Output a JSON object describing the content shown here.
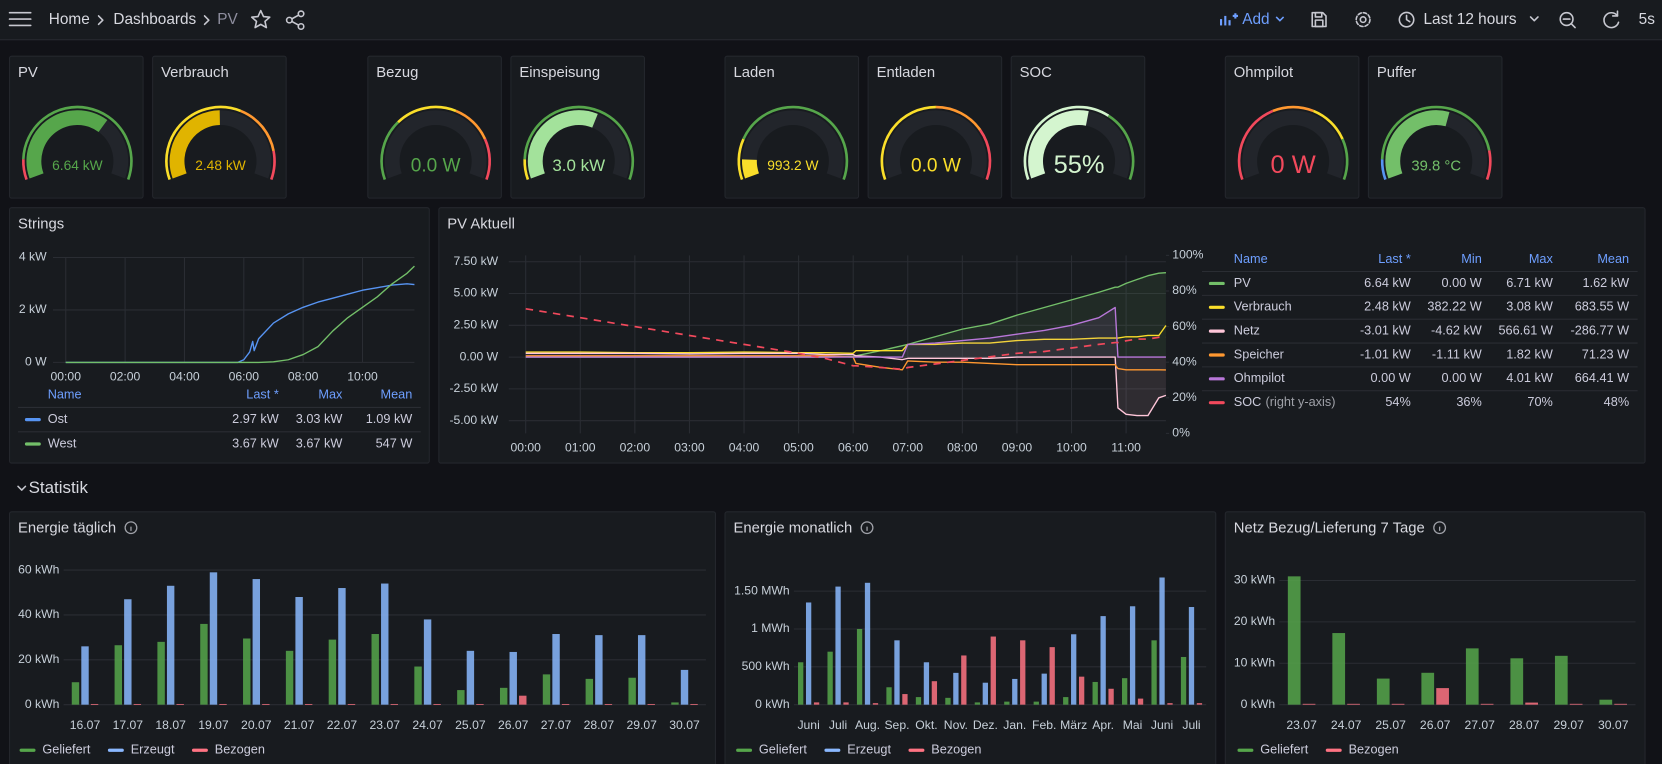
{
  "header": {
    "breadcrumb": [
      "Home",
      "Dashboards",
      "PV"
    ],
    "add": "Add",
    "time_range": "Last 12 hours",
    "refresh": "5s"
  },
  "section": "Statistik",
  "chart_data": [
    {
      "type": "gauge",
      "title": "PV",
      "value": 6.64,
      "value_label": "6.64 kW",
      "ylim": [
        0,
        10
      ],
      "color": "#56a64b",
      "thresholds": [
        {
          "value": 0,
          "color": "#f2495c"
        },
        {
          "value": 1,
          "color": "#56a64b"
        }
      ]
    },
    {
      "type": "gauge",
      "title": "Verbrauch",
      "value": 2.48,
      "value_label": "2.48 kW",
      "ylim": [
        0,
        5
      ],
      "color": "#e0b400",
      "thresholds": [
        {
          "value": 0,
          "color": "#fade2a"
        },
        {
          "value": 3,
          "color": "#ff9830"
        },
        {
          "value": 4.3,
          "color": "#f2495c"
        }
      ]
    },
    {
      "type": "gauge",
      "title": "Bezug",
      "value": 0,
      "value_label": "0.0 W",
      "ylim": [
        0,
        10000
      ],
      "color": "#56a64b",
      "thresholds": [
        {
          "value": 0,
          "color": "#56a64b"
        },
        {
          "value": 3000,
          "color": "#fade2a"
        },
        {
          "value": 6000,
          "color": "#ff9830"
        },
        {
          "value": 8000,
          "color": "#f2495c"
        }
      ]
    },
    {
      "type": "gauge",
      "title": "Einspeisung",
      "value": 3.0,
      "value_label": "3.0 kW",
      "ylim": [
        0,
        5
      ],
      "color": "#a3e29b",
      "thresholds": [
        {
          "value": 0,
          "color": "#fade2a"
        },
        {
          "value": 0.5,
          "color": "#56a64b"
        }
      ]
    },
    {
      "type": "gauge",
      "title": "Laden",
      "value": 993.2,
      "value_label": "993.2 W",
      "ylim": [
        0,
        10000
      ],
      "color": "#fade2a",
      "thresholds": [
        {
          "value": 0,
          "color": "#fade2a"
        },
        {
          "value": 2000,
          "color": "#56a64b"
        }
      ]
    },
    {
      "type": "gauge",
      "title": "Entladen",
      "value": 0,
      "value_label": "0.0 W",
      "ylim": [
        0,
        10000
      ],
      "color": "#fade2a",
      "thresholds": [
        {
          "value": 0,
          "color": "#fade2a"
        },
        {
          "value": 5000,
          "color": "#ff9830"
        },
        {
          "value": 7500,
          "color": "#f2495c"
        }
      ]
    },
    {
      "type": "gauge",
      "title": "SOC",
      "value": 55,
      "value_label": "55%",
      "ylim": [
        0,
        100
      ],
      "color": "#d4f5cf",
      "thresholds": [
        {
          "value": 0,
          "color": "#d4f5cf"
        },
        {
          "value": 65,
          "color": "#56a64b"
        }
      ]
    },
    {
      "type": "gauge",
      "title": "Ohmpilot",
      "value": 0,
      "value_label": "0 W",
      "ylim": [
        0,
        5000
      ],
      "color": "#f2495c",
      "thresholds": [
        {
          "value": 0,
          "color": "#f2495c"
        },
        {
          "value": 2000,
          "color": "#ff9830"
        },
        {
          "value": 3000,
          "color": "#fade2a"
        },
        {
          "value": 4000,
          "color": "#56a64b"
        }
      ]
    },
    {
      "type": "gauge",
      "title": "Puffer",
      "value": 39.8,
      "value_label": "39.8 °C",
      "ylim": [
        0,
        70
      ],
      "color": "#73bf69",
      "thresholds": [
        {
          "value": 0,
          "color": "#5794f2"
        },
        {
          "value": 7,
          "color": "#56a64b"
        },
        {
          "value": 60,
          "color": "#f2495c"
        }
      ]
    },
    {
      "type": "line",
      "title": "Strings",
      "x": [
        0,
        1,
        2,
        3,
        4,
        5,
        5.8,
        6.0,
        6.2,
        6.3,
        6.35,
        6.5,
        7,
        7.5,
        8,
        8.5,
        9,
        9.5,
        10,
        10.5,
        11,
        11.5,
        11.75
      ],
      "xlim": [
        -0.43,
        11.75
      ],
      "xticks": [
        {
          "value": 0,
          "label": "00:00"
        },
        {
          "value": 2,
          "label": "02:00"
        },
        {
          "value": 4,
          "label": "04:00"
        },
        {
          "value": 6,
          "label": "06:00"
        },
        {
          "value": 8,
          "label": "08:00"
        },
        {
          "value": 10,
          "label": "10:00"
        }
      ],
      "ylim": [
        0,
        4
      ],
      "yticks": [
        {
          "value": 0,
          "label": "0 W"
        },
        {
          "value": 2,
          "label": "2 kW"
        },
        {
          "value": 4,
          "label": "4 kW"
        }
      ],
      "grid": true,
      "legend_columns": [
        "Name",
        "Last *",
        "Max",
        "Mean"
      ],
      "series": [
        {
          "name": "Ost",
          "color": "#5794f2",
          "values": [
            0,
            0,
            0,
            0,
            0,
            0,
            0,
            0.1,
            0.4,
            0.8,
            0.45,
            0.9,
            1.5,
            1.85,
            2.1,
            2.3,
            2.45,
            2.6,
            2.75,
            2.85,
            2.95,
            3.0,
            2.97
          ],
          "stats": [
            "2.97 kW",
            "3.03 kW",
            "1.09 kW"
          ]
        },
        {
          "name": "West",
          "color": "#73bf69",
          "values": [
            0,
            0,
            0,
            0,
            0,
            0,
            0,
            0,
            0,
            0,
            0,
            0,
            0.02,
            0.1,
            0.3,
            0.6,
            1.2,
            1.7,
            2.1,
            2.5,
            3.0,
            3.4,
            3.67
          ],
          "stats": [
            "3.67 kW",
            "3.67 kW",
            "547 W"
          ]
        }
      ]
    },
    {
      "type": "line",
      "title": "PV Aktuell",
      "x": [
        0,
        1,
        2,
        3,
        4,
        5,
        5.5,
        6.0,
        6.05,
        6.5,
        6.9,
        7.0,
        7.5,
        8,
        8.5,
        9,
        9.5,
        10,
        10.5,
        10.8,
        10.85,
        11,
        11.2,
        11.4,
        11.6,
        11.73
      ],
      "xlim": [
        -0.31,
        11.73
      ],
      "xticks": [
        {
          "value": 0,
          "label": "00:00"
        },
        {
          "value": 1,
          "label": "01:00"
        },
        {
          "value": 2,
          "label": "02:00"
        },
        {
          "value": 3,
          "label": "03:00"
        },
        {
          "value": 4,
          "label": "04:00"
        },
        {
          "value": 5,
          "label": "05:00"
        },
        {
          "value": 6,
          "label": "06:00"
        },
        {
          "value": 7,
          "label": "07:00"
        },
        {
          "value": 8,
          "label": "08:00"
        },
        {
          "value": 9,
          "label": "09:00"
        },
        {
          "value": 10,
          "label": "10:00"
        },
        {
          "value": 11,
          "label": "11:00"
        }
      ],
      "ylim": [
        -6,
        8
      ],
      "yticks": [
        {
          "value": -5,
          "label": "-5.00 kW"
        },
        {
          "value": -2.5,
          "label": "-2.50 kW"
        },
        {
          "value": 0,
          "label": "0.00 W"
        },
        {
          "value": 2.5,
          "label": "2.50 kW"
        },
        {
          "value": 5,
          "label": "5.00 kW"
        },
        {
          "value": 7.5,
          "label": "7.50 kW"
        }
      ],
      "y2lim": [
        0,
        100
      ],
      "y2ticks": [
        {
          "value": 0,
          "label": "0%"
        },
        {
          "value": 20,
          "label": "20%"
        },
        {
          "value": 40,
          "label": "40%"
        },
        {
          "value": 60,
          "label": "60%"
        },
        {
          "value": 80,
          "label": "80%"
        },
        {
          "value": 100,
          "label": "100%"
        }
      ],
      "grid": true,
      "legend_columns": [
        "Name",
        "Last *",
        "Min",
        "Max",
        "Mean"
      ],
      "series": [
        {
          "name": "PV",
          "color": "#73bf69",
          "fill": true,
          "values": [
            0,
            0,
            0,
            0,
            0,
            0,
            0,
            0.05,
            0.1,
            0.5,
            0.9,
            1.0,
            1.6,
            2.2,
            2.6,
            3.3,
            3.9,
            4.5,
            5.1,
            5.5,
            5.5,
            5.8,
            6.1,
            6.4,
            6.6,
            6.64
          ],
          "stats": [
            "6.64 kW",
            "0.00 W",
            "6.71 kW",
            "1.62 kW"
          ]
        },
        {
          "name": "Verbrauch",
          "color": "#fade2a",
          "values": [
            0.4,
            0.4,
            0.35,
            0.35,
            0.4,
            0.35,
            0.35,
            0.3,
            0.5,
            0.5,
            0.5,
            1.0,
            1.0,
            1.1,
            1.1,
            1.3,
            1.4,
            1.4,
            1.5,
            1.5,
            1.5,
            1.6,
            1.6,
            1.7,
            1.7,
            2.48
          ],
          "stats": [
            "2.48 kW",
            "382.22 W",
            "3.08 kW",
            "683.55 W"
          ]
        },
        {
          "name": "Netz",
          "color": "#ffc6d9",
          "fill": true,
          "values": [
            0.3,
            0.3,
            0.3,
            0.25,
            0.3,
            0.3,
            0.2,
            0.2,
            0.1,
            0,
            -0.2,
            -0.1,
            -0.1,
            -0.1,
            -0.1,
            0,
            0,
            0,
            0,
            0,
            -4.0,
            -4.5,
            -4.6,
            -4.6,
            -3.2,
            -3.01
          ],
          "stats": [
            "-3.01 kW",
            "-4.62 kW",
            "566.61 W",
            "-286.77 W"
          ]
        },
        {
          "name": "Speicher",
          "color": "#ff9830",
          "values": [
            0.1,
            0.1,
            0.1,
            0.1,
            0.1,
            0.1,
            0.1,
            0,
            -0.5,
            -0.8,
            -1.0,
            -0.3,
            -0.4,
            -0.4,
            -0.5,
            -0.6,
            -0.6,
            -0.6,
            -0.6,
            -0.6,
            -0.9,
            -1.0,
            -1.0,
            -1.0,
            -1.0,
            -1.01
          ],
          "stats": [
            "-1.01 kW",
            "-1.11 kW",
            "1.82 kW",
            "71.23 W"
          ]
        },
        {
          "name": "Ohmpilot",
          "color": "#b877d9",
          "fill": true,
          "values": [
            0,
            0,
            0,
            0,
            0,
            0,
            0,
            0,
            0,
            0,
            0,
            1.0,
            1.1,
            1.3,
            1.5,
            1.8,
            2.1,
            2.5,
            3.1,
            3.9,
            0,
            0,
            0,
            0,
            0,
            0
          ],
          "stats": [
            "0.00 W",
            "0.00 W",
            "4.01 kW",
            "664.41 W"
          ]
        },
        {
          "name": "SOC",
          "axis_note": "(right y-axis)",
          "color": "#f2495c",
          "axis": "y2",
          "dashed": true,
          "values": [
            70,
            65,
            60,
            55,
            50,
            45,
            42,
            38,
            38,
            37,
            36,
            37,
            39,
            41,
            43,
            45,
            46,
            48,
            50,
            51,
            51,
            52,
            53,
            53,
            54,
            54
          ],
          "stats": [
            "54%",
            "36%",
            "70%",
            "48%"
          ]
        }
      ]
    },
    {
      "type": "bar",
      "title": "Energie täglich",
      "categories": [
        "16.07",
        "17.07",
        "18.07",
        "19.07",
        "20.07",
        "21.07",
        "22.07",
        "23.07",
        "24.07",
        "25.07",
        "26.07",
        "27.07",
        "28.07",
        "29.07",
        "30.07"
      ],
      "ylim": [
        0,
        60
      ],
      "yticks": [
        {
          "value": 0,
          "label": "0 kWh"
        },
        {
          "value": 20,
          "label": "20 kWh"
        },
        {
          "value": 40,
          "label": "40 kWh"
        },
        {
          "value": 60,
          "label": "60 kWh"
        }
      ],
      "grid": true,
      "series": [
        {
          "name": "Geliefert",
          "color": "#56a64b",
          "values": [
            10,
            26.5,
            28,
            36,
            29.5,
            24,
            29,
            31.5,
            17,
            6.5,
            7.5,
            13.5,
            11.5,
            12,
            1
          ]
        },
        {
          "name": "Erzeugt",
          "color": "#8ab8ff",
          "values": [
            26,
            47,
            53,
            59,
            56,
            48,
            52,
            54,
            38,
            24,
            23.5,
            31.5,
            31,
            31,
            15.5
          ]
        },
        {
          "name": "Bezogen",
          "color": "#ff7383",
          "values": [
            0.3,
            0.3,
            0.3,
            0.3,
            0.3,
            0.3,
            0.3,
            0.3,
            0.3,
            0.3,
            4,
            0.3,
            0.3,
            0.3,
            0.3
          ]
        }
      ]
    },
    {
      "type": "bar",
      "title": "Energie monatlich",
      "categories": [
        "Juni",
        "Juli",
        "Aug.",
        "Sep.",
        "Okt.",
        "Nov.",
        "Dez.",
        "Jan.",
        "Feb.",
        "März",
        "Apr.",
        "Mai",
        "Juni",
        "Juli"
      ],
      "ylim": [
        0,
        1750
      ],
      "yticks": [
        {
          "value": 0,
          "label": "0 kWh"
        },
        {
          "value": 500,
          "label": "500 kWh"
        },
        {
          "value": 1000,
          "label": "1 MWh"
        },
        {
          "value": 1500,
          "label": "1.50 MWh"
        }
      ],
      "grid": true,
      "series": [
        {
          "name": "Geliefert",
          "color": "#56a64b",
          "values": [
            560,
            700,
            1000,
            230,
            100,
            90,
            30,
            40,
            40,
            100,
            300,
            350,
            850,
            630
          ]
        },
        {
          "name": "Erzeugt",
          "color": "#8ab8ff",
          "values": [
            1350,
            1560,
            1610,
            850,
            560,
            420,
            290,
            340,
            410,
            930,
            1170,
            1300,
            1680,
            1290
          ]
        },
        {
          "name": "Bezogen",
          "color": "#ff7383",
          "values": [
            30,
            30,
            20,
            140,
            310,
            650,
            900,
            850,
            760,
            370,
            210,
            80,
            20,
            20
          ]
        }
      ]
    },
    {
      "type": "bar",
      "title": "Netz Bezug/Lieferung 7 Tage",
      "categories": [
        "23.07",
        "24.07",
        "25.07",
        "26.07",
        "27.07",
        "28.07",
        "29.07",
        "30.07"
      ],
      "ylim": [
        0,
        32
      ],
      "yticks": [
        {
          "value": 0,
          "label": "0 kWh"
        },
        {
          "value": 10,
          "label": "10 kWh"
        },
        {
          "value": 20,
          "label": "20 kWh"
        },
        {
          "value": 30,
          "label": "30 kWh"
        }
      ],
      "grid": true,
      "series": [
        {
          "name": "Geliefert",
          "color": "#56a64b",
          "values": [
            31,
            17.3,
            6.3,
            7.7,
            13.6,
            11.2,
            11.8,
            1.2
          ]
        },
        {
          "name": "Bezogen",
          "color": "#ff7383",
          "values": [
            0.2,
            0.2,
            0.2,
            4,
            0.2,
            0.5,
            0.2,
            0.2
          ]
        }
      ]
    }
  ]
}
